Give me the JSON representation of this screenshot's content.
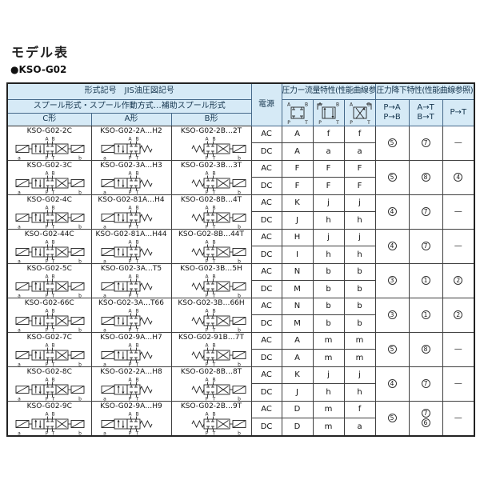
{
  "page": {
    "title": "モデル表",
    "subtitle": "●KSO-G02"
  },
  "colors": {
    "header_bg": "#d6eaf6",
    "header_text": "#16364f",
    "grid_line": "#3f3f3f",
    "outer_border": "#222222",
    "page_bg": "#ffffff"
  },
  "table": {
    "header": {
      "model_symbol": "形式記号　JIS油圧図記号",
      "spool": "スプール形式・スプール作動方式…補助スプール形式",
      "forms": [
        "C形",
        "A形",
        "B形"
      ],
      "power": "電源",
      "flow": "圧力ー流量特性(性能曲線参照)",
      "drop": "圧力降下特性(性能曲線参照)",
      "drop_cols": [
        "P→A\nP→B",
        "A→T\nB→T",
        "P→T"
      ],
      "flow_ports": [
        "A",
        "B",
        "P",
        "T"
      ]
    },
    "power_labels": [
      "AC",
      "DC"
    ],
    "valve_labels": {
      "ports_top": [
        "A",
        "B"
      ],
      "ports_bottom": [
        "P",
        "T"
      ],
      "sol_left": "a",
      "sol_right": "b"
    },
    "rows": [
      {
        "models": [
          "KSO-G02-2C",
          "KSO-G02-2A…H2",
          "KSO-G02-2B…2T"
        ],
        "ac": [
          "A",
          "f",
          "f"
        ],
        "dc": [
          "A",
          "a",
          "a"
        ],
        "drop": [
          [
            "5"
          ],
          [
            "7"
          ],
          [
            "—"
          ]
        ]
      },
      {
        "models": [
          "KSO-G02-3C",
          "KSO-G02-3A…H3",
          "KSO-G02-3B…3T"
        ],
        "ac": [
          "F",
          "F",
          "F"
        ],
        "dc": [
          "F",
          "F",
          "F"
        ],
        "drop": [
          [
            "5"
          ],
          [
            "8"
          ],
          [
            "4"
          ]
        ]
      },
      {
        "models": [
          "KSO-G02-4C",
          "KSO-G02-81A…H4",
          "KSO-G02-8B…4T"
        ],
        "ac": [
          "K",
          "j",
          "j"
        ],
        "dc": [
          "J",
          "h",
          "h"
        ],
        "drop": [
          [
            "4"
          ],
          [
            "7"
          ],
          [
            "—"
          ]
        ]
      },
      {
        "models": [
          "KSO-G02-44C",
          "KSO-G02-81A…H44",
          "KSO-G02-8B…44T"
        ],
        "ac": [
          "H",
          "j",
          "j"
        ],
        "dc": [
          "I",
          "h",
          "h"
        ],
        "drop": [
          [
            "4"
          ],
          [
            "7"
          ],
          [
            "—"
          ]
        ]
      },
      {
        "models": [
          "KSO-G02-5C",
          "KSO-G02-3A…T5",
          "KSO-G02-3B…5H"
        ],
        "ac": [
          "N",
          "b",
          "b"
        ],
        "dc": [
          "M",
          "b",
          "b"
        ],
        "drop": [
          [
            "3"
          ],
          [
            "1"
          ],
          [
            "2"
          ]
        ]
      },
      {
        "models": [
          "KSO-G02-66C",
          "KSO-G02-3A…T66",
          "KSO-G02-3B…66H"
        ],
        "ac": [
          "N",
          "b",
          "b"
        ],
        "dc": [
          "M",
          "b",
          "b"
        ],
        "drop": [
          [
            "3"
          ],
          [
            "1"
          ],
          [
            "2"
          ]
        ]
      },
      {
        "models": [
          "KSO-G02-7C",
          "KSO-G02-9A…H7",
          "KSO-G02-91B…7T"
        ],
        "ac": [
          "A",
          "m",
          "m"
        ],
        "dc": [
          "A",
          "m",
          "m"
        ],
        "drop": [
          [
            "5"
          ],
          [
            "8"
          ],
          [
            "—"
          ]
        ]
      },
      {
        "models": [
          "KSO-G02-8C",
          "KSO-G02-2A…H8",
          "KSO-G02-8B…8T"
        ],
        "ac": [
          "K",
          "j",
          "j"
        ],
        "dc": [
          "J",
          "h",
          "h"
        ],
        "drop": [
          [
            "4"
          ],
          [
            "7"
          ],
          [
            "—"
          ]
        ]
      },
      {
        "models": [
          "KSO-G02-9C",
          "KSO-G02-9A…H9",
          "KSO-G02-2B…9T"
        ],
        "ac": [
          "D",
          "m",
          "f"
        ],
        "dc": [
          "D",
          "m",
          "a"
        ],
        "drop": [
          [
            "5"
          ],
          [
            "7",
            "6"
          ],
          [
            "—"
          ]
        ]
      }
    ]
  }
}
